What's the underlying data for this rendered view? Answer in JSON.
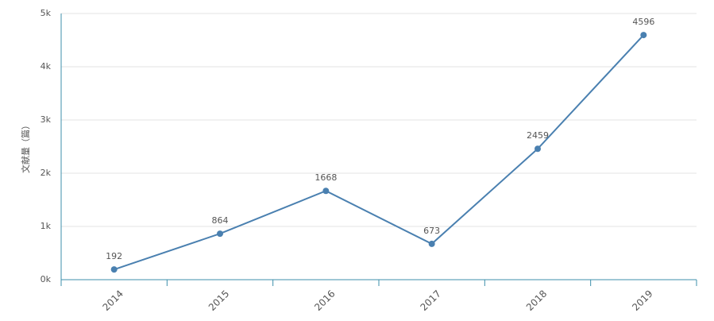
{
  "chart_data": {
    "type": "line",
    "y_label": "文献量（篇）",
    "categories": [
      "2014",
      "2015",
      "2016",
      "2017",
      "2018",
      "2019"
    ],
    "values": [
      192,
      864,
      1668,
      673,
      2459,
      4596
    ],
    "color": "#4a80b0",
    "ylim": [
      0,
      5000
    ],
    "yticks": [
      {
        "value": 0,
        "label": "0k"
      },
      {
        "value": 1000,
        "label": "1k"
      },
      {
        "value": 2000,
        "label": "2k"
      },
      {
        "value": 3000,
        "label": "3k"
      },
      {
        "value": 4000,
        "label": "4k"
      },
      {
        "value": 5000,
        "label": "5k"
      }
    ],
    "grid": true
  }
}
